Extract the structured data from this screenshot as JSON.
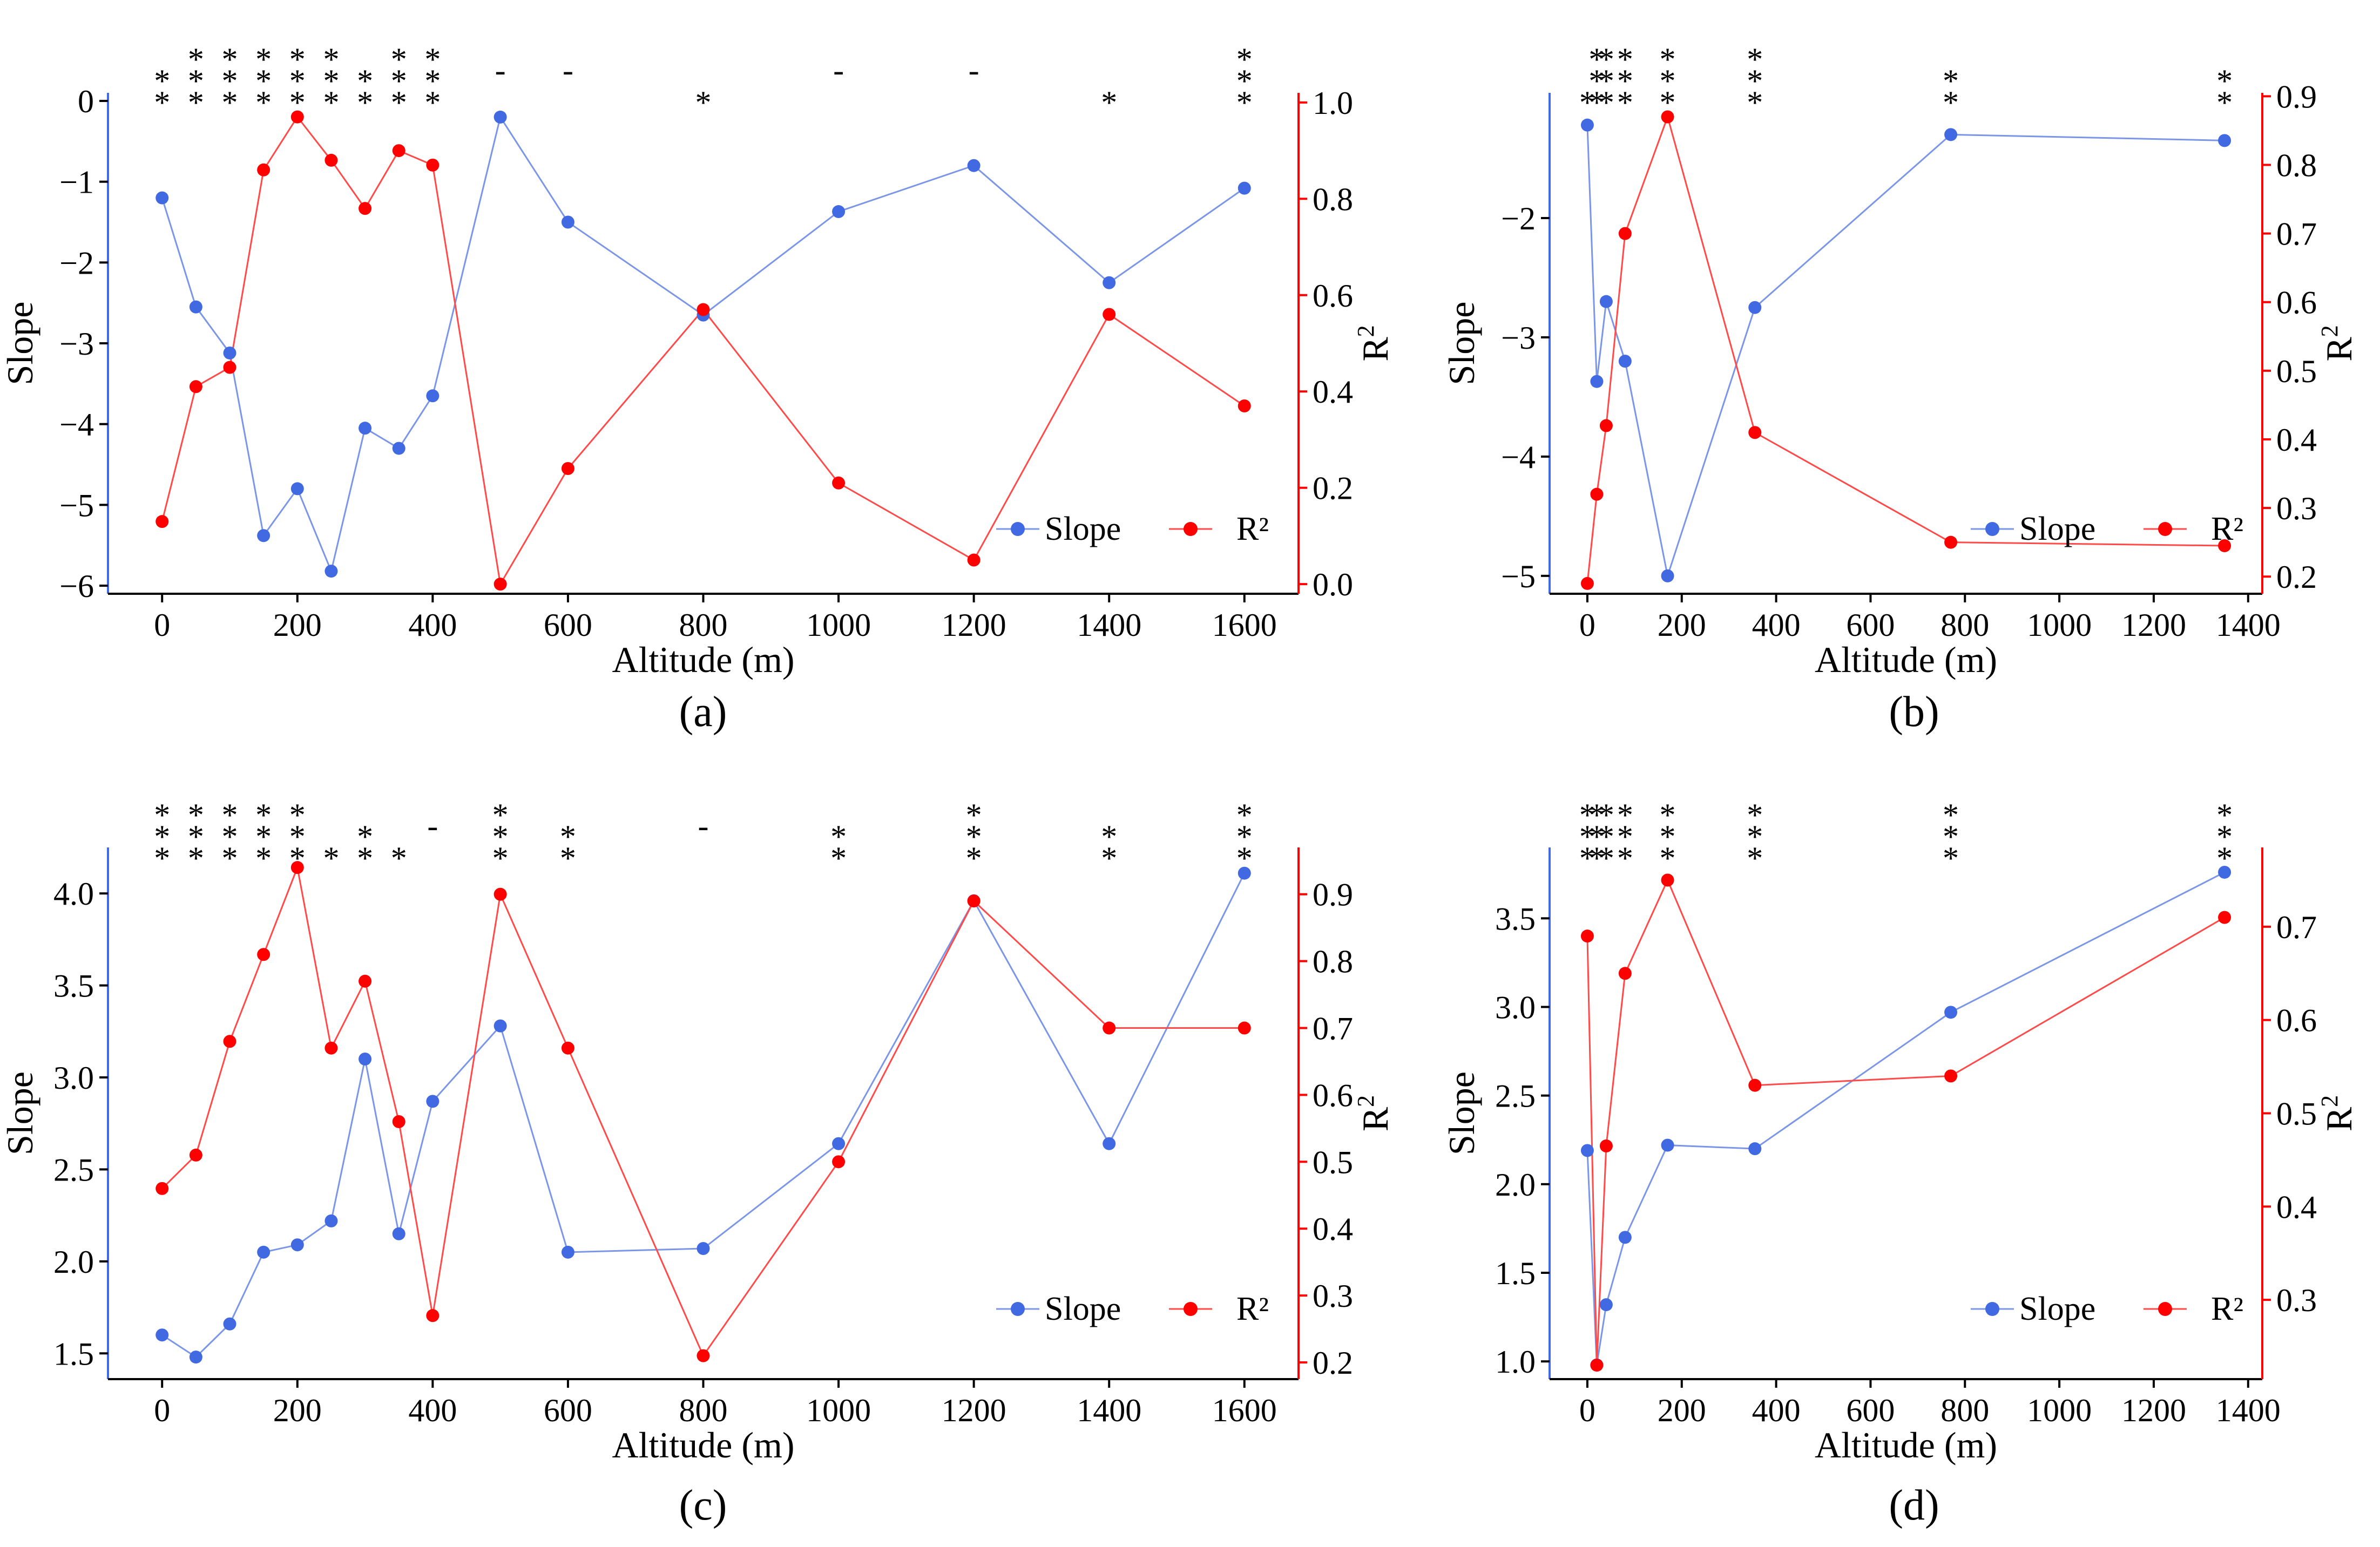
{
  "figure": {
    "colors": {
      "slope": "#4169E1",
      "r2": "#FF0000",
      "slope_line": "#7B96E6",
      "r2_line": "#FF4A4A"
    }
  },
  "chart_data": [
    {
      "type": "line",
      "panel_label": "(a)",
      "xlabel": "Altitude (m)",
      "ylabel": "Slope",
      "y2label": "R",
      "y2label_sup": "2",
      "x": [
        0,
        50,
        100,
        150,
        200,
        250,
        300,
        350,
        400,
        500,
        600,
        800,
        1000,
        1200,
        1400,
        1600
      ],
      "xlim": [
        -80,
        1680
      ],
      "xticks": [
        0,
        200,
        400,
        600,
        800,
        1000,
        1200,
        1400,
        1600
      ],
      "xtick_labels": [
        "0",
        "200",
        "400",
        "600",
        "800",
        "1000",
        "1200",
        "1400",
        "1600"
      ],
      "ylim": [
        -6.1,
        0.1
      ],
      "yticks": [
        0,
        -1,
        -2,
        -3,
        -4,
        -5,
        -6
      ],
      "ytick_labels": [
        "0",
        "−1",
        "−2",
        "−3",
        "−4",
        "−5",
        "−6"
      ],
      "y2lim": [
        -0.02,
        1.02
      ],
      "y2ticks": [
        0,
        0.2,
        0.4,
        0.6,
        0.8,
        1.0
      ],
      "y2tick_labels": [
        "0.0",
        "0.2",
        "0.4",
        "0.6",
        "0.8",
        "1.0"
      ],
      "series": [
        {
          "name": "Slope",
          "axis": "left",
          "values": [
            -1.2,
            -2.55,
            -3.12,
            -5.38,
            -4.8,
            -5.82,
            -4.05,
            -4.3,
            -3.65,
            -0.2,
            -1.5,
            -2.65,
            -1.37,
            -0.8,
            -2.25,
            -1.08
          ]
        },
        {
          "name": "R²",
          "axis": "right",
          "values": [
            0.13,
            0.41,
            0.45,
            0.86,
            0.97,
            0.88,
            0.78,
            0.9,
            0.87,
            0.0,
            0.24,
            0.57,
            0.21,
            0.05,
            0.56,
            0.37
          ]
        }
      ],
      "legend": [
        {
          "label": "Slope",
          "series": 0
        },
        {
          "label": "R²",
          "series": 1
        }
      ],
      "legend_position": "bottom-right",
      "significance": [
        {
          "x": 0,
          "mark": "**"
        },
        {
          "x": 50,
          "mark": "***"
        },
        {
          "x": 100,
          "mark": "***"
        },
        {
          "x": 150,
          "mark": "***"
        },
        {
          "x": 200,
          "mark": "***"
        },
        {
          "x": 250,
          "mark": "***"
        },
        {
          "x": 300,
          "mark": "**"
        },
        {
          "x": 350,
          "mark": "***"
        },
        {
          "x": 400,
          "mark": "***"
        },
        {
          "x": 500,
          "mark": "-"
        },
        {
          "x": 600,
          "mark": "-"
        },
        {
          "x": 800,
          "mark": "*"
        },
        {
          "x": 1000,
          "mark": "-"
        },
        {
          "x": 1200,
          "mark": "-"
        },
        {
          "x": 1400,
          "mark": "*"
        },
        {
          "x": 1600,
          "mark": "***"
        }
      ]
    },
    {
      "type": "line",
      "panel_label": "(b)",
      "xlabel": "Altitude (m)",
      "ylabel": "Slope",
      "y2label": "R",
      "y2label_sup": "2",
      "x": [
        0,
        20,
        40,
        80,
        170,
        355,
        770,
        1350
      ],
      "xlim": [
        -80,
        1430
      ],
      "xticks": [
        0,
        200,
        400,
        600,
        800,
        1000,
        1200,
        1400
      ],
      "xtick_labels": [
        "0",
        "200",
        "400",
        "600",
        "800",
        "1000",
        "1200",
        "1400"
      ],
      "ylim": [
        -5.15,
        -0.95
      ],
      "yticks": [
        -2,
        -3,
        -4,
        -5
      ],
      "ytick_labels": [
        "−2",
        "−3",
        "−4",
        "−5"
      ],
      "y2lim": [
        0.175,
        0.905
      ],
      "y2ticks": [
        0.2,
        0.3,
        0.4,
        0.5,
        0.6,
        0.7,
        0.8,
        0.9
      ],
      "y2tick_labels": [
        "0.2",
        "0.3",
        "0.4",
        "0.5",
        "0.6",
        "0.7",
        "0.8",
        "0.9"
      ],
      "series": [
        {
          "name": "Slope",
          "axis": "left",
          "values": [
            -1.22,
            -3.37,
            -2.7,
            -3.2,
            -5.0,
            -2.75,
            -1.3,
            -1.35
          ]
        },
        {
          "name": "R²",
          "axis": "right",
          "values": [
            0.19,
            0.32,
            0.42,
            0.7,
            0.87,
            0.41,
            0.25,
            0.245
          ]
        }
      ],
      "legend": [
        {
          "label": "Slope",
          "series": 0
        },
        {
          "label": "R²",
          "series": 1
        }
      ],
      "legend_position": "bottom-right",
      "significance": [
        {
          "x": 0,
          "mark": "*"
        },
        {
          "x": 20,
          "mark": "***"
        },
        {
          "x": 40,
          "mark": "***"
        },
        {
          "x": 80,
          "mark": "***"
        },
        {
          "x": 170,
          "mark": "***"
        },
        {
          "x": 355,
          "mark": "***"
        },
        {
          "x": 770,
          "mark": "**"
        },
        {
          "x": 1350,
          "mark": "**"
        }
      ]
    },
    {
      "type": "line",
      "panel_label": "(c)",
      "xlabel": "Altitude (m)",
      "ylabel": "Slope",
      "y2label": "R",
      "y2label_sup": "2",
      "x": [
        0,
        50,
        100,
        150,
        200,
        250,
        300,
        350,
        400,
        500,
        600,
        800,
        1000,
        1200,
        1400,
        1600
      ],
      "xlim": [
        -80,
        1680
      ],
      "xticks": [
        0,
        200,
        400,
        600,
        800,
        1000,
        1200,
        1400,
        1600
      ],
      "xtick_labels": [
        "0",
        "200",
        "400",
        "600",
        "800",
        "1000",
        "1200",
        "1400",
        "1600"
      ],
      "ylim": [
        1.36,
        4.25
      ],
      "yticks": [
        1.5,
        2.0,
        2.5,
        3.0,
        3.5,
        4.0
      ],
      "ytick_labels": [
        "1.5",
        "2.0",
        "2.5",
        "3.0",
        "3.5",
        "4.0"
      ],
      "y2lim": [
        0.175,
        0.97
      ],
      "y2ticks": [
        0.2,
        0.3,
        0.4,
        0.5,
        0.6,
        0.7,
        0.8,
        0.9
      ],
      "y2tick_labels": [
        "0.2",
        "0.3",
        "0.4",
        "0.5",
        "0.6",
        "0.7",
        "0.8",
        "0.9"
      ],
      "series": [
        {
          "name": "Slope",
          "axis": "left",
          "values": [
            1.6,
            1.48,
            1.66,
            2.05,
            2.09,
            2.22,
            3.1,
            2.15,
            2.87,
            3.28,
            2.05,
            2.07,
            2.64,
            3.96,
            2.64,
            4.11
          ]
        },
        {
          "name": "R²",
          "axis": "right",
          "values": [
            0.46,
            0.51,
            0.68,
            0.81,
            0.94,
            0.67,
            0.77,
            0.56,
            0.27,
            0.9,
            0.67,
            0.21,
            0.5,
            0.89,
            0.7,
            0.7
          ]
        }
      ],
      "legend": [
        {
          "label": "Slope",
          "series": 0
        },
        {
          "label": "R²",
          "series": 1
        }
      ],
      "legend_position": "bottom-right",
      "significance": [
        {
          "x": 0,
          "mark": "***"
        },
        {
          "x": 50,
          "mark": "***"
        },
        {
          "x": 100,
          "mark": "***"
        },
        {
          "x": 150,
          "mark": "***"
        },
        {
          "x": 200,
          "mark": "***"
        },
        {
          "x": 250,
          "mark": "*"
        },
        {
          "x": 300,
          "mark": "**"
        },
        {
          "x": 350,
          "mark": "*"
        },
        {
          "x": 400,
          "mark": "-"
        },
        {
          "x": 500,
          "mark": "***"
        },
        {
          "x": 600,
          "mark": "**"
        },
        {
          "x": 800,
          "mark": "-"
        },
        {
          "x": 1000,
          "mark": "**"
        },
        {
          "x": 1200,
          "mark": "***"
        },
        {
          "x": 1400,
          "mark": "**"
        },
        {
          "x": 1600,
          "mark": "***"
        }
      ]
    },
    {
      "type": "line",
      "panel_label": "(d)",
      "xlabel": "Altitude (m)",
      "ylabel": "Slope",
      "y2label": "R",
      "y2label_sup": "2",
      "x": [
        0,
        20,
        40,
        80,
        170,
        355,
        770,
        1350
      ],
      "xlim": [
        -80,
        1430
      ],
      "xticks": [
        0,
        200,
        400,
        600,
        800,
        1000,
        1200,
        1400
      ],
      "xtick_labels": [
        "0",
        "200",
        "400",
        "600",
        "800",
        "1000",
        "1200",
        "1400"
      ],
      "ylim": [
        0.9,
        3.9
      ],
      "yticks": [
        1.0,
        1.5,
        2.0,
        2.5,
        3.0,
        3.5
      ],
      "ytick_labels": [
        "1.0",
        "1.5",
        "2.0",
        "2.5",
        "3.0",
        "3.5"
      ],
      "y2lim": [
        0.215,
        0.785
      ],
      "y2ticks": [
        0.3,
        0.4,
        0.5,
        0.6,
        0.7
      ],
      "y2tick_labels": [
        "0.3",
        "0.4",
        "0.5",
        "0.6",
        "0.7"
      ],
      "series": [
        {
          "name": "Slope",
          "axis": "left",
          "values": [
            2.19,
            0.98,
            1.32,
            1.7,
            2.22,
            2.2,
            2.97,
            3.76
          ]
        },
        {
          "name": "R²",
          "axis": "right",
          "values": [
            0.69,
            0.23,
            0.465,
            0.65,
            0.75,
            0.53,
            0.54,
            0.71
          ]
        }
      ],
      "legend": [
        {
          "label": "Slope",
          "series": 0
        },
        {
          "label": "R²",
          "series": 1
        }
      ],
      "legend_position": "bottom-right",
      "significance": [
        {
          "x": 0,
          "mark": "***"
        },
        {
          "x": 20,
          "mark": "***"
        },
        {
          "x": 40,
          "mark": "***"
        },
        {
          "x": 80,
          "mark": "***"
        },
        {
          "x": 170,
          "mark": "***"
        },
        {
          "x": 355,
          "mark": "***"
        },
        {
          "x": 770,
          "mark": "***"
        },
        {
          "x": 1350,
          "mark": "***"
        }
      ]
    }
  ]
}
